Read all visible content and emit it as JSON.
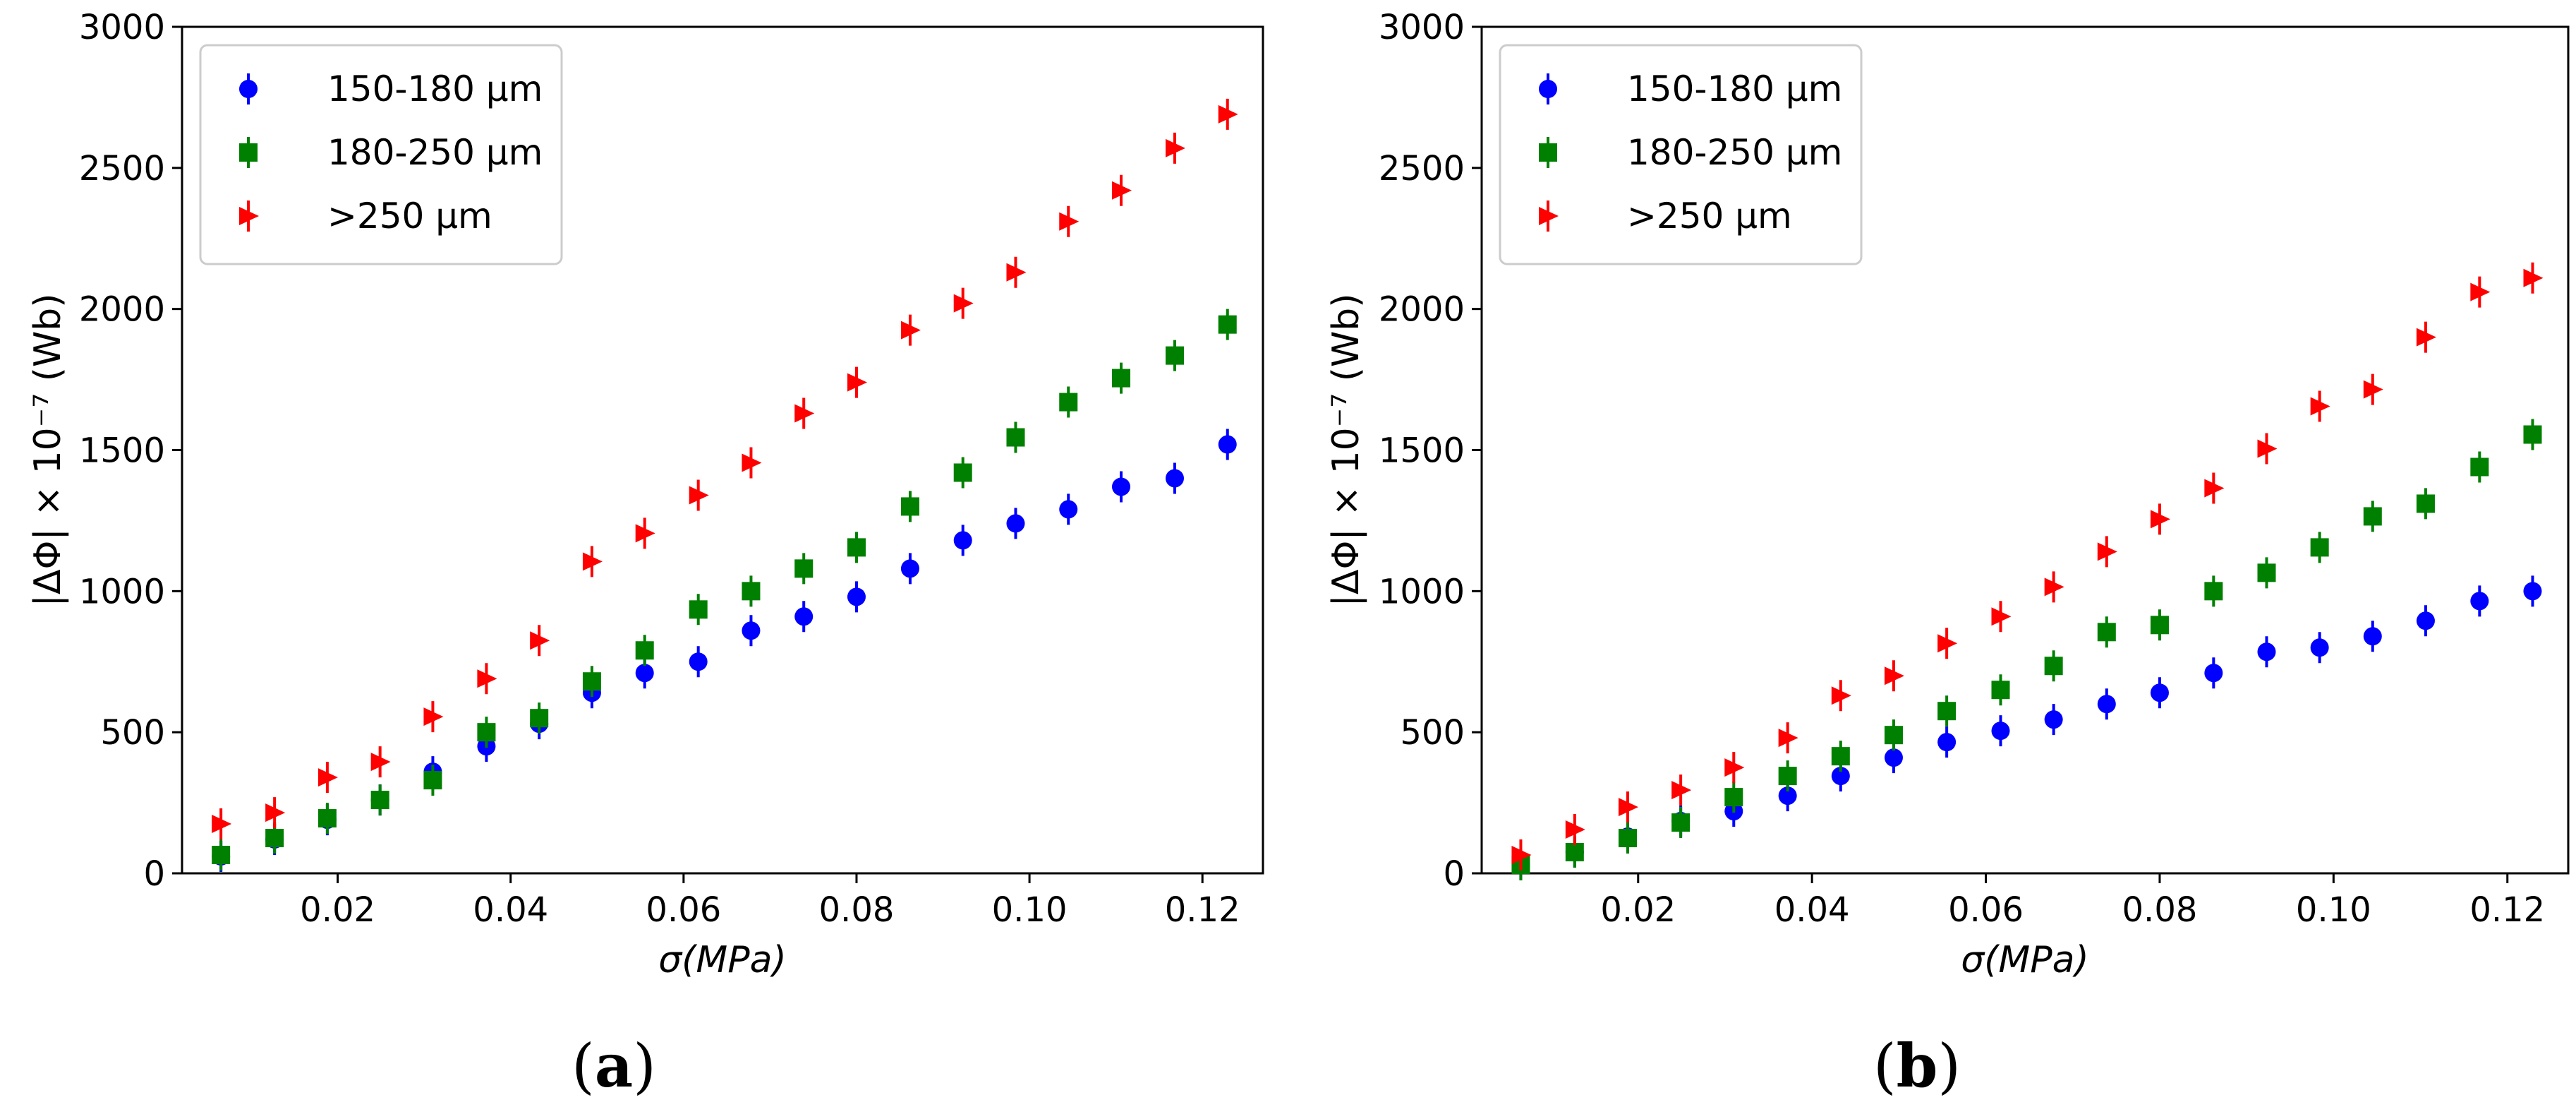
{
  "figure": {
    "panel_labels": [
      {
        "open": "(",
        "letter": "a",
        "close": ")"
      },
      {
        "open": "(",
        "letter": "b",
        "close": ")"
      }
    ]
  },
  "chart_data": [
    {
      "type": "scatter",
      "panel": "a",
      "title": "",
      "xlabel": "σ(MPa)",
      "ylabel": "|ΔΦ| × 10⁻⁷ (Wb)",
      "xlim": [
        0.002,
        0.127
      ],
      "ylim": [
        0,
        3000
      ],
      "xticks": [
        "0.02",
        "0.04",
        "0.06",
        "0.08",
        "0.10",
        "0.12"
      ],
      "xtick_values": [
        0.02,
        0.04,
        0.06,
        0.08,
        0.1,
        0.12
      ],
      "yticks": [
        "0",
        "500",
        "1000",
        "1500",
        "2000",
        "2500",
        "3000"
      ],
      "ytick_values": [
        0,
        500,
        1000,
        1500,
        2000,
        2500,
        3000
      ],
      "grid": false,
      "legend_position": "top-left",
      "x": [
        0.0065,
        0.0127,
        0.0188,
        0.0249,
        0.031,
        0.0372,
        0.0433,
        0.0494,
        0.0555,
        0.0617,
        0.0678,
        0.0739,
        0.08,
        0.0862,
        0.0923,
        0.0984,
        0.1045,
        0.1106,
        0.1168,
        0.1229
      ],
      "series": [
        {
          "name": "150-180 μm",
          "marker": "circle",
          "color": "#0000ff",
          "values": [
            60,
            120,
            190,
            260,
            360,
            450,
            530,
            640,
            710,
            750,
            860,
            910,
            980,
            1080,
            1180,
            1240,
            1290,
            1370,
            1400,
            1520
          ]
        },
        {
          "name": "180-250 μm",
          "marker": "square",
          "color": "#008000",
          "values": [
            65,
            125,
            195,
            260,
            330,
            500,
            550,
            680,
            790,
            935,
            1000,
            1080,
            1155,
            1300,
            1420,
            1545,
            1670,
            1755,
            1835,
            1945
          ]
        },
        {
          "name": ">250 μm",
          "marker": "triangle-right",
          "color": "#ff0000",
          "values": [
            175,
            215,
            340,
            395,
            555,
            690,
            825,
            1105,
            1205,
            1340,
            1455,
            1630,
            1740,
            1925,
            2020,
            2130,
            2310,
            2420,
            2570,
            2690
          ]
        }
      ]
    },
    {
      "type": "scatter",
      "panel": "b",
      "title": "",
      "xlabel": "σ(MPa)",
      "ylabel": "|ΔΦ| × 10⁻⁷ (Wb)",
      "xlim": [
        0.002,
        0.127
      ],
      "ylim": [
        0,
        3000
      ],
      "xticks": [
        "0.02",
        "0.04",
        "0.06",
        "0.08",
        "0.10",
        "0.12"
      ],
      "xtick_values": [
        0.02,
        0.04,
        0.06,
        0.08,
        0.1,
        0.12
      ],
      "yticks": [
        "0",
        "500",
        "1000",
        "1500",
        "2000",
        "2500",
        "3000"
      ],
      "ytick_values": [
        0,
        500,
        1000,
        1500,
        2000,
        2500,
        3000
      ],
      "grid": false,
      "legend_position": "top-left",
      "x": [
        0.0065,
        0.0127,
        0.0188,
        0.0249,
        0.031,
        0.0372,
        0.0433,
        0.0494,
        0.0555,
        0.0617,
        0.0678,
        0.0739,
        0.08,
        0.0862,
        0.0923,
        0.0984,
        0.1045,
        0.1106,
        0.1168,
        0.1229
      ],
      "series": [
        {
          "name": "150-180 μm",
          "marker": "circle",
          "color": "#0000ff",
          "values": [
            30,
            75,
            130,
            185,
            220,
            275,
            345,
            410,
            465,
            505,
            545,
            600,
            640,
            710,
            785,
            800,
            840,
            895,
            965,
            1000
          ]
        },
        {
          "name": "180-250 μm",
          "marker": "square",
          "color": "#008000",
          "values": [
            30,
            75,
            125,
            180,
            270,
            345,
            415,
            490,
            575,
            650,
            735,
            855,
            880,
            1000,
            1065,
            1155,
            1265,
            1310,
            1440,
            1555
          ]
        },
        {
          "name": ">250 μm",
          "marker": "triangle-right",
          "color": "#ff0000",
          "values": [
            65,
            155,
            235,
            295,
            375,
            480,
            630,
            700,
            815,
            910,
            1015,
            1140,
            1255,
            1365,
            1505,
            1655,
            1715,
            1900,
            2060,
            2110
          ]
        }
      ]
    }
  ]
}
